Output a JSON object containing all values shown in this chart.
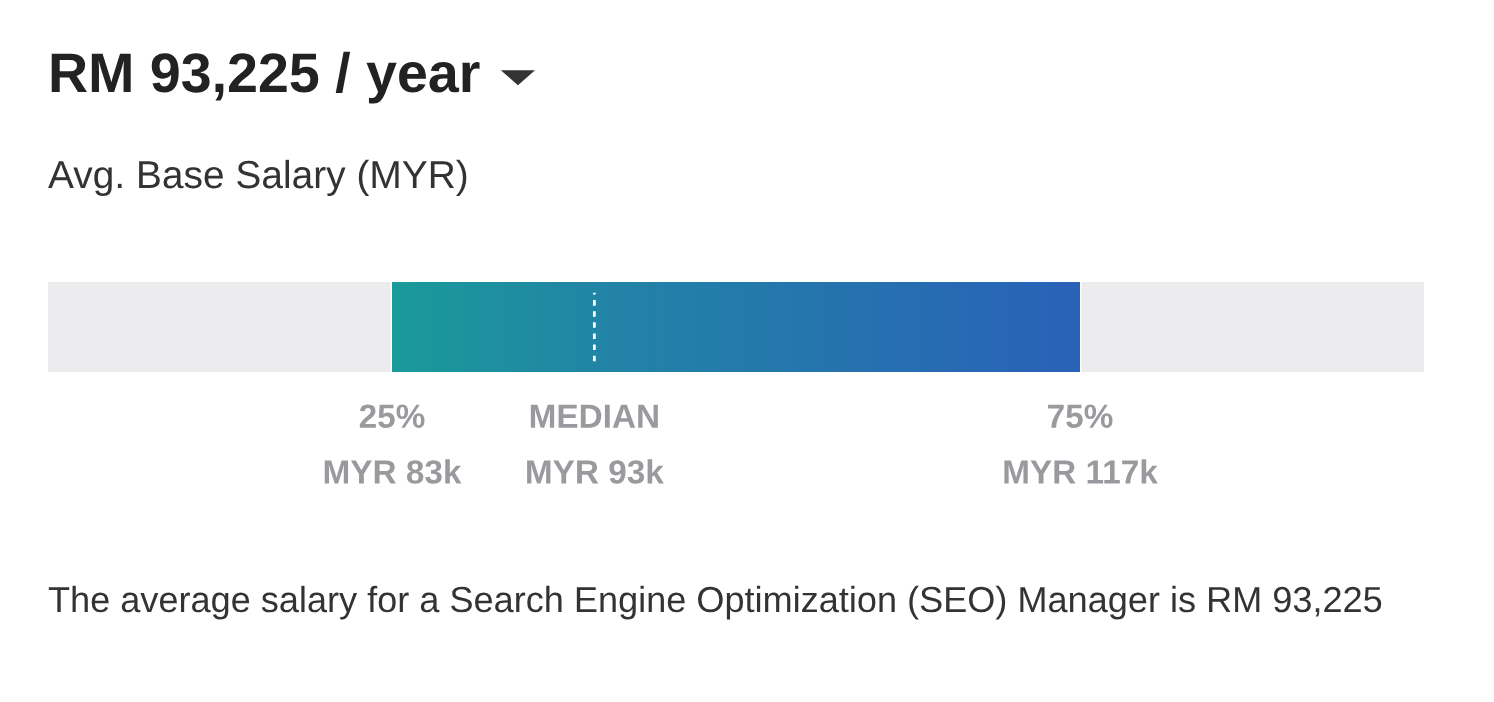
{
  "chart_data": {
    "type": "other",
    "title": "RM 93,225 / year",
    "subtitle": "Avg. Base Salary (MYR)",
    "categories": [
      "25%",
      "MEDIAN",
      "75%"
    ],
    "values": [
      83000,
      93000,
      117000
    ],
    "value_labels": [
      "MYR 83k",
      "MYR 93k",
      "MYR 117k"
    ],
    "colors": [
      "#1a9a9a",
      "#2285a6",
      "#2a62b8"
    ],
    "annotations": [
      "The average salary for a Search Engine Optimization (SEO) Manager is RM 93,225"
    ]
  }
}
